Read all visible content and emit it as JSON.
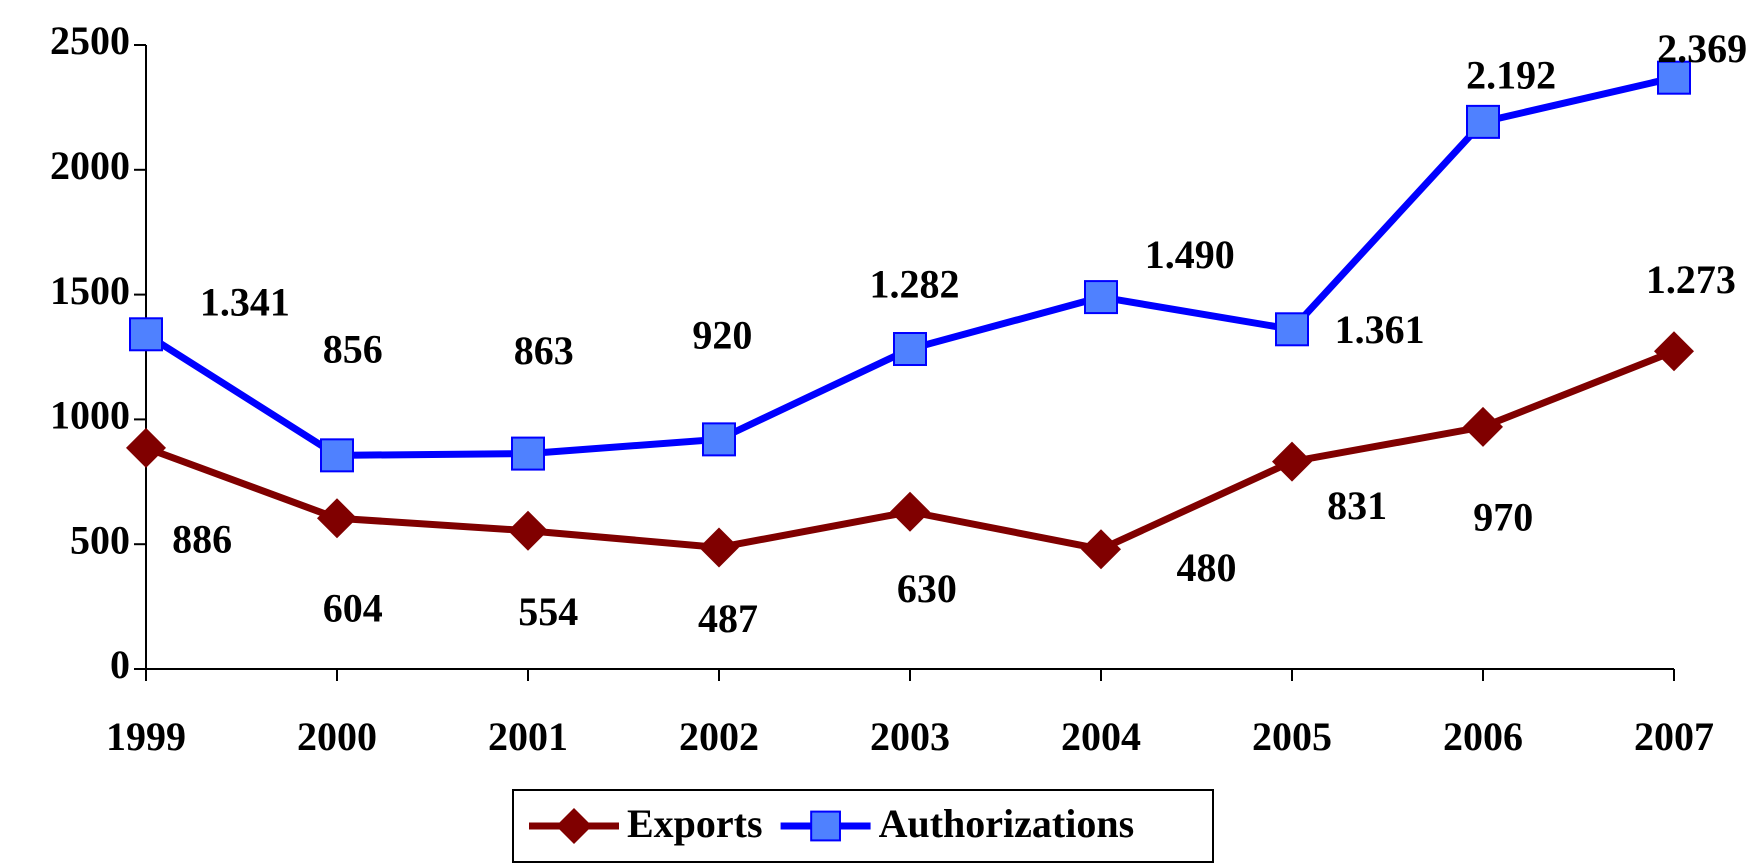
{
  "chart_data": {
    "type": "line",
    "categories": [
      "1999",
      "2000",
      "2001",
      "2002",
      "2003",
      "2004",
      "2005",
      "2006",
      "2007"
    ],
    "series": [
      {
        "name": "Exports",
        "color": "#800000",
        "marker": "diamond",
        "values": [
          886,
          604,
          554,
          487,
          630,
          480,
          831,
          970,
          1273
        ],
        "value_labels": [
          "886",
          "604",
          "554",
          "487",
          "630",
          "480",
          "831",
          "970",
          "1.273"
        ]
      },
      {
        "name": "Authorizations",
        "color": "#0000ff",
        "marker": "square",
        "values": [
          1341,
          856,
          863,
          920,
          1282,
          1490,
          1361,
          2192,
          2369
        ],
        "value_labels": [
          "1.341",
          "856",
          "863",
          "920",
          "1.282",
          "1.490",
          "1.361",
          "2.192",
          "2.369"
        ]
      }
    ],
    "ylim": [
      0,
      2500
    ],
    "yticks": [
      0,
      500,
      1000,
      1500,
      2000,
      2500
    ],
    "grid": false,
    "legend": "bottom"
  }
}
